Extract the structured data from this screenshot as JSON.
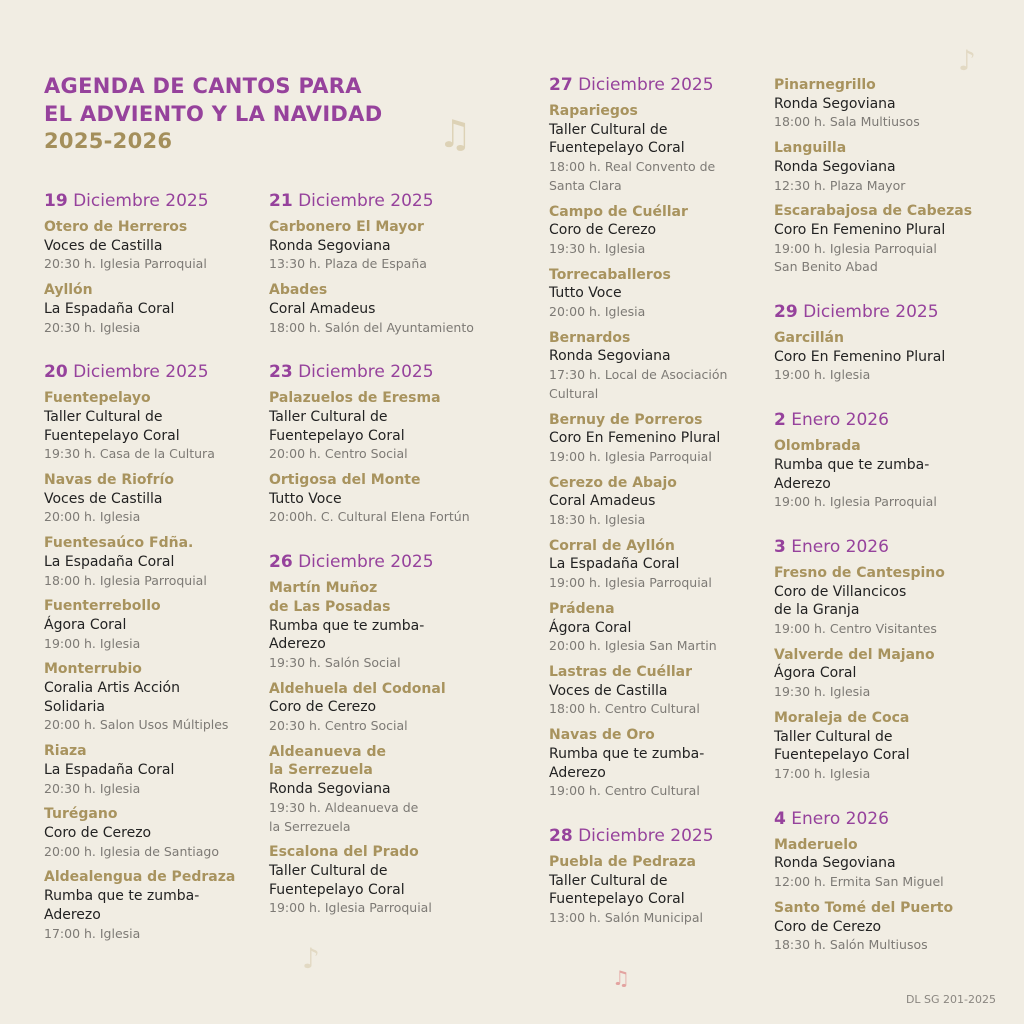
{
  "title": {
    "line1": "AGENDA DE CANTOS PARA",
    "line2": "EL ADVIENTO Y LA NAVIDAD",
    "years": "2025-2026"
  },
  "colors": {
    "purple": "#96429c",
    "gold": "#a8935e",
    "text": "#222222",
    "detail": "#7d7a75",
    "background": "#f1ede3"
  },
  "icons": [
    "music-note-icon"
  ],
  "columns": [
    [
      {
        "day": "19",
        "month": "Diciembre 2025",
        "entries": [
          {
            "place": "Otero de Herreros",
            "group": "Voces de Castilla",
            "detail": "20:30 h. Iglesia Parroquial"
          },
          {
            "place": "Ayllón",
            "group": "La Espadaña Coral",
            "detail": "20:30 h. Iglesia"
          }
        ]
      },
      {
        "day": "20",
        "month": "Diciembre 2025",
        "entries": [
          {
            "place": "Fuentepelayo",
            "group": "Taller Cultural de\nFuentepelayo Coral",
            "detail": "19:30 h. Casa de la Cultura"
          },
          {
            "place": "Navas de Riofrío",
            "group": "Voces de Castilla",
            "detail": "20:00 h. Iglesia"
          },
          {
            "place": "Fuentesaúco Fdña.",
            "group": "La Espadaña Coral",
            "detail": "18:00 h. Iglesia Parroquial"
          },
          {
            "place": "Fuenterrebollo",
            "group": "Ágora Coral",
            "detail": "19:00 h. Iglesia"
          },
          {
            "place": "Monterrubio",
            "group": "Coralia Artis Acción\nSolidaria",
            "detail": "20:00 h. Salon Usos Múltiples"
          },
          {
            "place": "Riaza",
            "group": "La Espadaña Coral",
            "detail": "20:30 h. Iglesia"
          },
          {
            "place": "Turégano",
            "group": "Coro de Cerezo",
            "detail": "20:00 h. Iglesia de Santiago"
          },
          {
            "place": "Aldealengua de Pedraza",
            "group": "Rumba que te zumba-\nAderezo",
            "detail": "17:00 h. Iglesia"
          }
        ]
      }
    ],
    [
      {
        "day": "21",
        "month": "Diciembre 2025",
        "entries": [
          {
            "place": "Carbonero El Mayor",
            "group": "Ronda Segoviana",
            "detail": "13:30 h. Plaza de España"
          },
          {
            "place": "Abades",
            "group": "Coral Amadeus",
            "detail": "18:00 h. Salón del Ayuntamiento"
          }
        ]
      },
      {
        "day": "23",
        "month": "Diciembre 2025",
        "entries": [
          {
            "place": "Palazuelos de Eresma",
            "group": "Taller Cultural de\nFuentepelayo Coral",
            "detail": "20:00 h. Centro Social"
          },
          {
            "place": "Ortigosa del Monte",
            "group": "Tutto Voce",
            "detail": "20:00h. C. Cultural Elena Fortún"
          }
        ]
      },
      {
        "day": "26",
        "month": "Diciembre 2025",
        "entries": [
          {
            "place": "Martín Muñoz\nde Las Posadas",
            "group": "Rumba que te zumba-\nAderezo",
            "detail": "19:30 h. Salón Social"
          },
          {
            "place": "Aldehuela del Codonal",
            "group": "Coro de Cerezo",
            "detail": "20:30 h. Centro Social"
          },
          {
            "place": "Aldeanueva de\nla Serrezuela",
            "group": "Ronda Segoviana",
            "detail": "19:30 h. Aldeanueva de\nla Serrezuela"
          },
          {
            "place": "Escalona del Prado",
            "group": "Taller Cultural de\nFuentepelayo Coral",
            "detail": "19:00 h. Iglesia Parroquial"
          }
        ]
      }
    ],
    [
      {
        "day": "27",
        "month": "Diciembre 2025",
        "entries": [
          {
            "place": "Rapariegos",
            "group": "Taller Cultural de\nFuentepelayo Coral",
            "detail": "18:00 h. Real Convento de\nSanta Clara"
          },
          {
            "place": "Campo de Cuéllar",
            "group": "Coro de Cerezo",
            "detail": "19:30 h. Iglesia"
          },
          {
            "place": "Torrecaballeros",
            "group": "Tutto Voce",
            "detail": "20:00 h. Iglesia"
          },
          {
            "place": "Bernardos",
            "group": "Ronda Segoviana",
            "detail": "17:30 h. Local de Asociación\nCultural"
          },
          {
            "place": "Bernuy de Porreros",
            "group": "Coro En Femenino Plural",
            "detail": "19:00 h. Iglesia Parroquial"
          },
          {
            "place": "Cerezo de Abajo",
            "group": "Coral Amadeus",
            "detail": "18:30 h. Iglesia"
          },
          {
            "place": "Corral de Ayllón",
            "group": "La Espadaña Coral",
            "detail": "19:00 h. Iglesia Parroquial"
          },
          {
            "place": "Prádena",
            "group": "Ágora Coral",
            "detail": "20:00 h. Iglesia San Martin"
          },
          {
            "place": "Lastras de Cuéllar",
            "group": "Voces de Castilla",
            "detail": "18:00 h. Centro Cultural"
          },
          {
            "place": "Navas de Oro",
            "group": "Rumba que te zumba-\nAderezo",
            "detail": "19:00 h. Centro Cultural"
          }
        ]
      },
      {
        "day": "28",
        "month": "Diciembre 2025",
        "entries": [
          {
            "place": "Puebla de Pedraza",
            "group": "Taller Cultural de\nFuentepelayo Coral",
            "detail": "13:00 h. Salón Municipal"
          }
        ]
      }
    ],
    [
      {
        "entries": [
          {
            "place": "Pinarnegrillo",
            "group": "Ronda Segoviana",
            "detail": "18:00 h. Sala Multiusos"
          },
          {
            "place": "Languilla",
            "group": "Ronda Segoviana",
            "detail": "12:30 h. Plaza Mayor"
          },
          {
            "place": "Escarabajosa de Cabezas",
            "group": "Coro En Femenino Plural",
            "detail": "19:00 h. Iglesia Parroquial\nSan Benito Abad"
          }
        ]
      },
      {
        "day": "29",
        "month": "Diciembre 2025",
        "entries": [
          {
            "place": "Garcillán",
            "group": "Coro En Femenino Plural",
            "detail": "19:00 h. Iglesia"
          }
        ]
      },
      {
        "day": "2",
        "month": "Enero 2026",
        "entries": [
          {
            "place": "Olombrada",
            "group": "Rumba que te zumba-\nAderezo",
            "detail": "19:00 h. Iglesia Parroquial"
          }
        ]
      },
      {
        "day": "3",
        "month": "Enero 2026",
        "entries": [
          {
            "place": "Fresno de Cantespino",
            "group": "Coro de Villancicos\nde la Granja",
            "detail": "19:00 h. Centro Visitantes"
          },
          {
            "place": "Valverde del Majano",
            "group": "Ágora Coral",
            "detail": "19:30 h. Iglesia"
          },
          {
            "place": "Moraleja de Coca",
            "group": "Taller Cultural de\nFuentepelayo Coral",
            "detail": "17:00 h. Iglesia"
          }
        ]
      },
      {
        "day": "4",
        "month": "Enero 2026",
        "entries": [
          {
            "place": "Maderuelo",
            "group": "Ronda Segoviana",
            "detail": "12:00 h. Ermita San Miguel"
          },
          {
            "place": "Santo Tomé del Puerto",
            "group": "Coro de Cerezo",
            "detail": "18:30 h. Salón Multiusos"
          }
        ]
      }
    ]
  ],
  "footer": "DL SG 201-2025"
}
